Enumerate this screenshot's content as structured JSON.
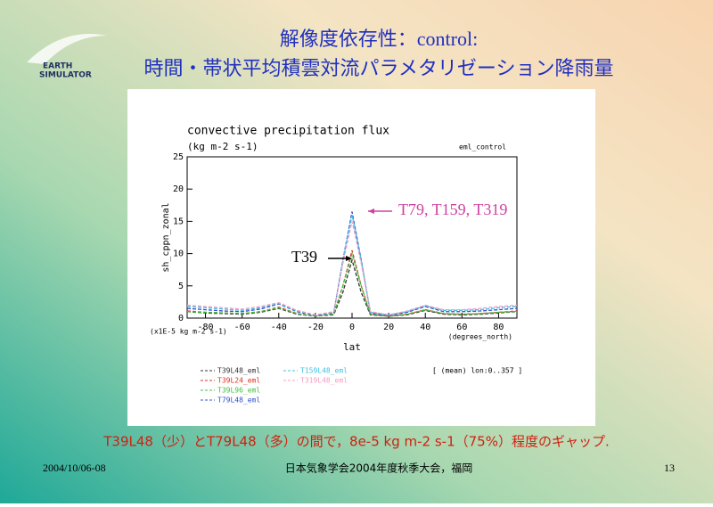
{
  "slide": {
    "title_line1": "解像度依存性：control:",
    "title_line2": "時間・帯状平均積雲対流パラメタリゼーション降雨量",
    "logo": [
      "EARTH",
      "SIMULATOR"
    ],
    "statement": "T39L48（少）とT79L48（多）の間で，8e-5 kg m-2 s-1（75%）程度のギャップ.",
    "date": "2004/10/06-08",
    "conference": "日本気象学会2004年度秋季大会，福岡",
    "page": "13"
  },
  "chart_data": {
    "type": "line",
    "title": "convective precipitation flux",
    "subtitle": "(kg m-2 s-1)",
    "tag": "eml_control",
    "y_label": "sh_cppn_zonal",
    "x_label": "lat",
    "x_unit": "(degrees_north)",
    "scale_note": "(x1E-5 kg m-2 s-1)",
    "mean_note": "[ (mean) lon:0..357 ]",
    "annotations": [
      {
        "text": "T79, T159, T319",
        "color": "#d040a0"
      },
      {
        "text": "T39",
        "color": "#000000"
      }
    ],
    "xlim": [
      -90,
      90
    ],
    "xticks": [
      -80,
      -60,
      -40,
      -20,
      0,
      20,
      40,
      60,
      80
    ],
    "ylim": [
      0,
      25
    ],
    "yticks": [
      0,
      5,
      10,
      15,
      20,
      25
    ],
    "x": [
      -90,
      -80,
      -70,
      -60,
      -50,
      -40,
      -30,
      -20,
      -10,
      -5,
      0,
      5,
      10,
      20,
      30,
      40,
      50,
      60,
      70,
      80,
      90
    ],
    "series": [
      {
        "name": "T39L48_eml",
        "color": "#333333",
        "values": [
          1.0,
          0.8,
          0.7,
          0.6,
          0.9,
          1.5,
          0.6,
          0.3,
          0.5,
          4,
          9,
          4,
          0.5,
          0.3,
          0.5,
          1.2,
          0.6,
          0.5,
          0.6,
          0.8,
          1.0
        ]
      },
      {
        "name": "T39L24_eml",
        "color": "#e03020",
        "values": [
          1.1,
          0.9,
          0.8,
          0.7,
          1.0,
          1.7,
          0.7,
          0.3,
          0.6,
          5,
          10.5,
          5,
          0.6,
          0.3,
          0.6,
          1.3,
          0.7,
          0.6,
          0.7,
          0.9,
          1.1
        ]
      },
      {
        "name": "T39L96_eml",
        "color": "#40c040",
        "values": [
          1.0,
          0.9,
          0.8,
          0.7,
          1.0,
          1.6,
          0.7,
          0.3,
          0.6,
          5,
          10,
          5,
          0.6,
          0.3,
          0.6,
          1.3,
          0.7,
          0.6,
          0.7,
          0.9,
          1.0
        ]
      },
      {
        "name": "T79L48_eml",
        "color": "#3050d0",
        "values": [
          1.5,
          1.3,
          1.1,
          1.0,
          1.4,
          2.2,
          1.0,
          0.4,
          0.8,
          9,
          16.5,
          9,
          0.8,
          0.4,
          0.9,
          1.8,
          1.0,
          1.0,
          1.1,
          1.3,
          1.5
        ]
      },
      {
        "name": "T159L48_eml",
        "color": "#40c0e0",
        "values": [
          1.8,
          1.6,
          1.4,
          1.2,
          1.6,
          2.3,
          1.1,
          0.5,
          0.9,
          9,
          16,
          9,
          0.9,
          0.5,
          1.0,
          1.9,
          1.2,
          1.2,
          1.3,
          1.6,
          1.8
        ]
      },
      {
        "name": "T319L48_eml",
        "color": "#f0a0c0",
        "values": [
          2.0,
          1.8,
          1.6,
          1.4,
          1.8,
          2.4,
          1.2,
          0.5,
          1.0,
          8.5,
          15,
          8.5,
          1.0,
          0.5,
          1.1,
          2.0,
          1.3,
          1.3,
          1.5,
          1.8,
          2.0
        ]
      }
    ]
  }
}
